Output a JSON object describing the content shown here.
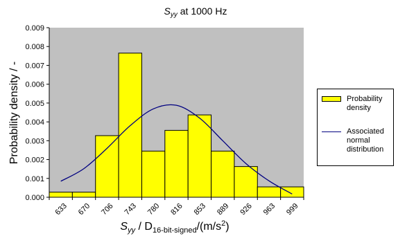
{
  "chart_data": {
    "type": "bar",
    "title_main": "S",
    "title_sub": "yy",
    "title_rest": " at 1000 Hz",
    "ylabel": "Probability density / -",
    "xlabel_parts": {
      "s": "S",
      "s_sub": "yy",
      "mid": " / D",
      "d_sub": "16-bit-signed",
      "unit": "/(m/s",
      "unit_sup": "2",
      "close": ")"
    },
    "categories": [
      "633",
      "670",
      "706",
      "743",
      "780",
      "816",
      "853",
      "889",
      "926",
      "963",
      "999"
    ],
    "values": [
      0.00027,
      0.00027,
      0.00327,
      0.00765,
      0.00245,
      0.00355,
      0.00437,
      0.00245,
      0.00163,
      0.00055,
      0.00055
    ],
    "normal_curve": {
      "x": [
        "633",
        "670",
        "706",
        "743",
        "780",
        "816",
        "853",
        "889",
        "926",
        "963",
        "999"
      ],
      "y": [
        0.00085,
        0.00152,
        0.0026,
        0.0038,
        0.00469,
        0.00488,
        0.0042,
        0.003,
        0.00179,
        0.00087,
        0.00017
      ]
    },
    "ylim": [
      0,
      0.009
    ],
    "yticks": [
      "0.000",
      "0.001",
      "0.002",
      "0.003",
      "0.004",
      "0.005",
      "0.006",
      "0.007",
      "0.008",
      "0.009"
    ],
    "grid": false,
    "legend_placement": "right",
    "legend": [
      {
        "label": "Probability\ndensity",
        "kind": "bar"
      },
      {
        "label": "Associated\nnormal\ndistribution",
        "kind": "line"
      }
    ],
    "colors": {
      "plot_bg": "#c0c0c0",
      "bar_fill": "#ffff00",
      "bar_stroke": "#000000",
      "curve": "#000080"
    }
  }
}
